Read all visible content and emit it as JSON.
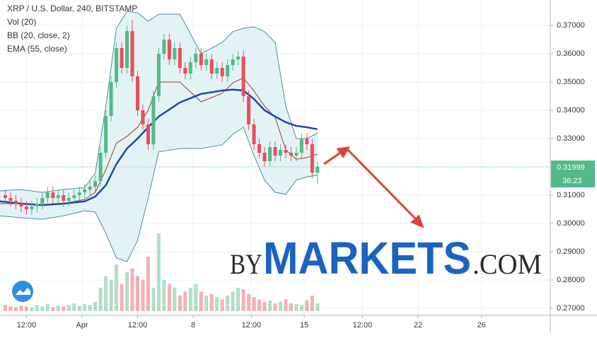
{
  "chart_data": {
    "type": "candlestick",
    "title": "XRP / U.S. Dollar, 240, BITSTAMP",
    "indicators": [
      "Vol (20)",
      "BB (20, close, 2)",
      "EMA (55, close)"
    ],
    "up_color": "#53b987",
    "down_color": "#eb4d5c",
    "x": [
      2,
      4,
      6,
      8,
      10,
      12,
      14,
      16,
      18,
      20,
      22,
      24,
      26,
      28,
      30,
      32,
      34,
      36,
      38,
      40,
      42,
      44,
      46,
      48,
      50,
      52,
      54,
      56,
      58,
      60,
      62,
      64,
      66,
      68,
      70,
      72,
      74,
      76,
      78,
      80,
      82,
      84,
      86,
      88,
      90,
      92,
      94,
      96,
      98,
      100,
      102,
      104,
      106,
      108,
      110,
      112,
      114,
      116,
      118,
      120
    ],
    "open": [
      0.31,
      0.309,
      0.308,
      0.307,
      0.306,
      0.305,
      0.306,
      0.307,
      0.309,
      0.311,
      0.309,
      0.31,
      0.308,
      0.309,
      0.31,
      0.311,
      0.312,
      0.313,
      0.315,
      0.325,
      0.338,
      0.35,
      0.362,
      0.355,
      0.368,
      0.352,
      0.34,
      0.335,
      0.328,
      0.345,
      0.36,
      0.365,
      0.358,
      0.362,
      0.355,
      0.353,
      0.357,
      0.36,
      0.356,
      0.358,
      0.353,
      0.355,
      0.352,
      0.356,
      0.358,
      0.359,
      0.345,
      0.335,
      0.328,
      0.325,
      0.322,
      0.327,
      0.324,
      0.326,
      0.325,
      0.324,
      0.325,
      0.33,
      0.328,
      0.318
    ],
    "high": [
      0.312,
      0.311,
      0.31,
      0.309,
      0.308,
      0.308,
      0.309,
      0.311,
      0.313,
      0.313,
      0.312,
      0.312,
      0.311,
      0.312,
      0.313,
      0.314,
      0.315,
      0.317,
      0.327,
      0.34,
      0.352,
      0.364,
      0.364,
      0.37,
      0.372,
      0.354,
      0.342,
      0.337,
      0.347,
      0.362,
      0.367,
      0.367,
      0.364,
      0.364,
      0.357,
      0.359,
      0.362,
      0.362,
      0.36,
      0.36,
      0.357,
      0.357,
      0.358,
      0.36,
      0.361,
      0.361,
      0.347,
      0.337,
      0.33,
      0.327,
      0.329,
      0.329,
      0.328,
      0.328,
      0.327,
      0.327,
      0.332,
      0.332,
      0.33,
      0.322
    ],
    "low": [
      0.307,
      0.306,
      0.305,
      0.304,
      0.303,
      0.303,
      0.304,
      0.305,
      0.307,
      0.307,
      0.307,
      0.306,
      0.306,
      0.307,
      0.308,
      0.309,
      0.31,
      0.311,
      0.313,
      0.323,
      0.336,
      0.348,
      0.353,
      0.353,
      0.35,
      0.338,
      0.333,
      0.326,
      0.326,
      0.343,
      0.358,
      0.356,
      0.356,
      0.353,
      0.351,
      0.351,
      0.355,
      0.354,
      0.354,
      0.351,
      0.351,
      0.35,
      0.35,
      0.354,
      0.356,
      0.343,
      0.333,
      0.326,
      0.323,
      0.32,
      0.32,
      0.322,
      0.322,
      0.323,
      0.322,
      0.322,
      0.323,
      0.326,
      0.316,
      0.314
    ],
    "close": [
      0.309,
      0.308,
      0.307,
      0.306,
      0.305,
      0.306,
      0.307,
      0.309,
      0.311,
      0.309,
      0.31,
      0.308,
      0.309,
      0.31,
      0.311,
      0.312,
      0.313,
      0.315,
      0.325,
      0.338,
      0.35,
      0.362,
      0.355,
      0.368,
      0.352,
      0.34,
      0.335,
      0.328,
      0.345,
      0.36,
      0.365,
      0.358,
      0.362,
      0.355,
      0.353,
      0.357,
      0.36,
      0.356,
      0.358,
      0.353,
      0.355,
      0.352,
      0.356,
      0.358,
      0.359,
      0.345,
      0.335,
      0.328,
      0.325,
      0.322,
      0.327,
      0.324,
      0.326,
      0.325,
      0.324,
      0.325,
      0.33,
      0.328,
      0.318,
      0.32
    ],
    "volume": [
      8,
      6,
      5,
      7,
      6,
      5,
      8,
      6,
      9,
      5,
      7,
      6,
      8,
      10,
      7,
      9,
      8,
      12,
      30,
      45,
      40,
      60,
      35,
      50,
      55,
      45,
      40,
      70,
      30,
      100,
      40,
      35,
      30,
      20,
      25,
      30,
      35,
      25,
      20,
      22,
      18,
      15,
      20,
      25,
      30,
      28,
      22,
      18,
      15,
      12,
      14,
      10,
      12,
      15,
      10,
      9,
      8,
      14,
      20,
      10
    ],
    "line_x": [
      0,
      8,
      16,
      24,
      32,
      36,
      40,
      44,
      48,
      52,
      56,
      60,
      68,
      76,
      84,
      88,
      92,
      96,
      100,
      104,
      108,
      112,
      116,
      120
    ],
    "bb_upper": [
      0.3115,
      0.312,
      0.311,
      0.312,
      0.3127,
      0.3178,
      0.3415,
      0.369,
      0.375,
      0.3745,
      0.3715,
      0.374,
      0.374,
      0.36,
      0.364,
      0.3678,
      0.369,
      0.3695,
      0.3678,
      0.364,
      0.3415,
      0.33,
      0.33,
      0.332
    ],
    "bb_lower": [
      0.3027,
      0.302,
      0.3015,
      0.3027,
      0.3045,
      0.304,
      0.2965,
      0.2878,
      0.2865,
      0.294,
      0.309,
      0.3253,
      0.3265,
      0.3265,
      0.3278,
      0.3315,
      0.334,
      0.324,
      0.3153,
      0.311,
      0.3103,
      0.3153,
      0.3165,
      0.317
    ],
    "bb_basis": [
      0.307,
      0.307,
      0.3063,
      0.307,
      0.3085,
      0.311,
      0.319,
      0.3284,
      0.3308,
      0.334,
      0.34,
      0.35,
      0.35,
      0.343,
      0.346,
      0.3497,
      0.3515,
      0.3468,
      0.3415,
      0.3375,
      0.326,
      0.3227,
      0.3233,
      0.3245
    ],
    "ema": [
      0.3078,
      0.307,
      0.3065,
      0.307,
      0.3078,
      0.3095,
      0.3135,
      0.321,
      0.3265,
      0.33,
      0.334,
      0.3378,
      0.3428,
      0.3458,
      0.347,
      0.3473,
      0.347,
      0.344,
      0.34,
      0.3378,
      0.3358,
      0.3345,
      0.334,
      0.3333
    ],
    "bb_color": "#4a8fa0",
    "bb_fill": "#e3f2f5",
    "basis_color": "#a33a2a",
    "ema_color": "#1f4aa0",
    "last_price": {
      "value": 0.31999,
      "label": "0.31999"
    },
    "countdown": "36:23",
    "xlim": [
      0,
      208
    ],
    "xticks": [
      {
        "value": 10,
        "label": "12:00"
      },
      {
        "value": 31,
        "label": "Apr"
      },
      {
        "value": 52,
        "label": "12:00"
      },
      {
        "value": 73,
        "label": "8"
      },
      {
        "value": 95,
        "label": "12:00"
      },
      {
        "value": 115,
        "label": "15"
      },
      {
        "value": 137,
        "label": "12:00"
      },
      {
        "value": 158,
        "label": "22"
      },
      {
        "value": 182,
        "label": "26"
      }
    ],
    "ylim": [
      0.2675,
      0.379
    ],
    "yticks": [
      {
        "value": 0.27,
        "label": "0.27000"
      },
      {
        "value": 0.28,
        "label": "0.28000"
      },
      {
        "value": 0.29,
        "label": "0.29000"
      },
      {
        "value": 0.3,
        "label": "0.30000"
      },
      {
        "value": 0.31,
        "label": "0.31000"
      },
      {
        "value": 0.32,
        "label": "0.32000"
      },
      {
        "value": 0.33,
        "label": "0.33000"
      },
      {
        "value": 0.34,
        "label": "0.34000"
      },
      {
        "value": 0.35,
        "label": "0.35000"
      },
      {
        "value": 0.36,
        "label": "0.36000"
      },
      {
        "value": 0.37,
        "label": "0.37000"
      }
    ],
    "grid": true,
    "watermark": [
      "BY",
      "MARKETS",
      ".COM"
    ]
  }
}
